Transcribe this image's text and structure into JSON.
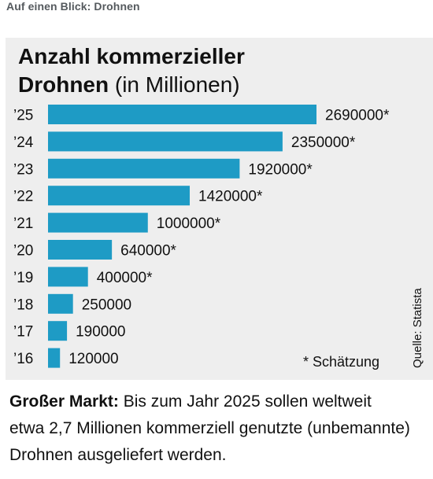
{
  "header": {
    "kicker": "Auf einen Blick: Drohnen"
  },
  "chart": {
    "title_bold_line1": "Anzahl kommerzieller",
    "title_bold_line2": "Drohnen",
    "title_light": "(in Millionen)",
    "footnote": "* Schätzung",
    "source": "Quelle: Statista",
    "bar_color": "#1e9bc5"
  },
  "chart_data": {
    "type": "bar",
    "orientation": "horizontal",
    "title": "Anzahl kommerzieller Drohnen (in Millionen)",
    "categories": [
      "’25",
      "’24",
      "’23",
      "’22",
      "’21",
      "’20",
      "’19",
      "’18",
      "’17",
      "’16"
    ],
    "values": [
      2690000,
      2350000,
      1920000,
      1420000,
      1000000,
      640000,
      400000,
      250000,
      190000,
      120000
    ],
    "value_labels": [
      "2690000*",
      "2350000*",
      "1920000*",
      "1420000*",
      "1000000*",
      "640000*",
      "400000*",
      "250000",
      "190000",
      "120000"
    ],
    "xlim": [
      0,
      2690000
    ],
    "grid": false
  },
  "summary": {
    "lead": "Großer Markt:",
    "text": "Bis zum Jahr 2025 sollen welt­weit etwa 2,7 Millionen kommerziell genutzte (unbemannte) Drohnen ausgeliefert werden."
  }
}
